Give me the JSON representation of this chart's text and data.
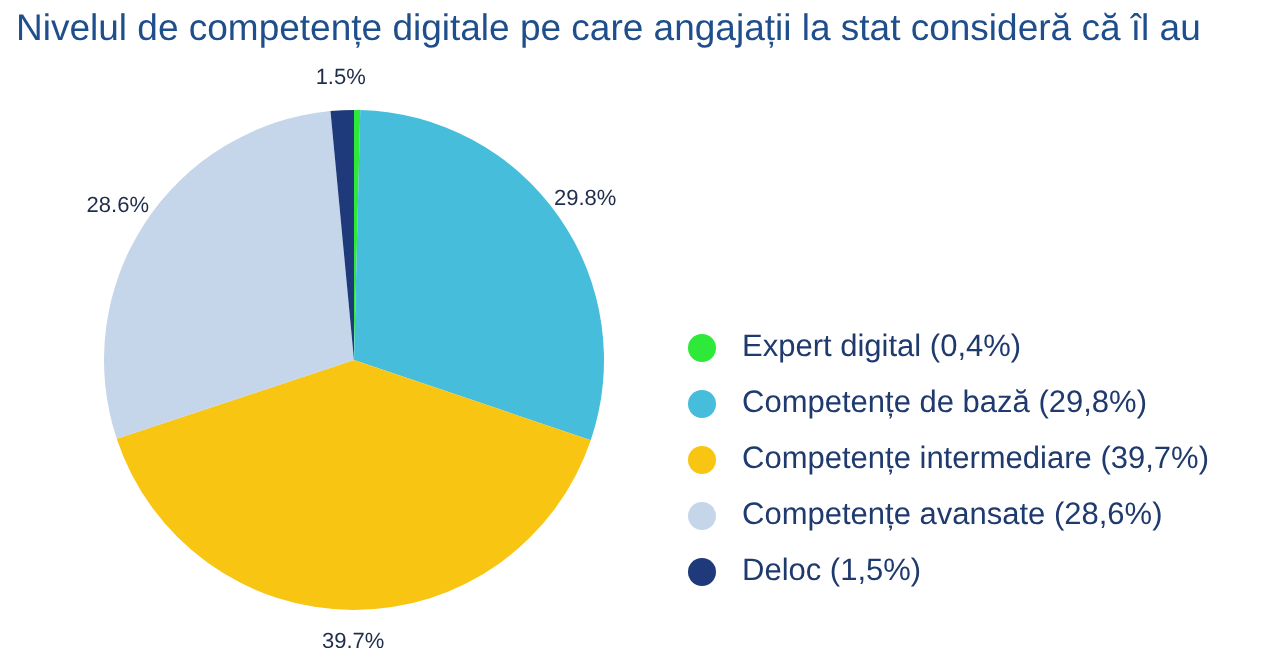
{
  "chart_data": {
    "type": "pie",
    "title": "Nivelul de competențe digitale pe care angajații la stat consideră că îl au",
    "categories": [
      "Expert digital (0,4%)",
      "Competențe de bază (29,8%)",
      "Competențe intermediare (39,7%)",
      "Competențe avansate (28,6%)",
      "Deloc (1,5%)"
    ],
    "values": [
      0.4,
      29.8,
      39.7,
      28.6,
      1.5
    ],
    "colors": [
      "#2ee83a",
      "#45bddb",
      "#f8c512",
      "#c6d6ea",
      "#1f3a7a"
    ],
    "value_labels": [
      null,
      "29.8%",
      "39.7%",
      "28.6%",
      "1.5%"
    ],
    "legend": "right"
  }
}
